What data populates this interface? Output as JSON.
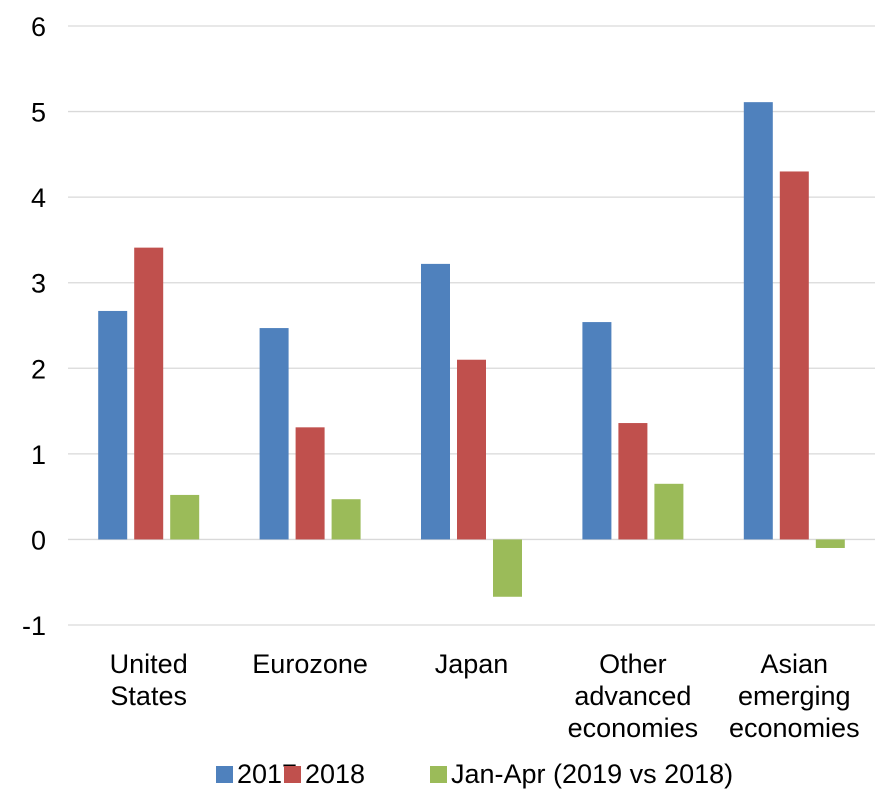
{
  "chart_data": {
    "type": "bar",
    "title": "",
    "xlabel": "",
    "ylabel": "",
    "ylim": [
      -1,
      6
    ],
    "yticks": [
      -1,
      0,
      1,
      2,
      3,
      4,
      5,
      6
    ],
    "grid": true,
    "legend_position": "bottom",
    "categories": [
      [
        "United",
        "States"
      ],
      [
        "Eurozone"
      ],
      [
        "Japan"
      ],
      [
        "Other",
        "advanced",
        "economies"
      ],
      [
        "Asian",
        "emerging",
        "economies"
      ]
    ],
    "series": [
      {
        "name": "2017",
        "color": "#4F81BD",
        "values": [
          2.67,
          2.47,
          3.22,
          2.54,
          5.11
        ]
      },
      {
        "name": "2018",
        "color": "#C0504D",
        "values": [
          3.41,
          1.31,
          2.1,
          1.36,
          4.3
        ]
      },
      {
        "name": "Jan-Apr (2019 vs 2018)",
        "color": "#9BBB59",
        "values": [
          0.52,
          0.47,
          -0.67,
          0.65,
          -0.1
        ]
      }
    ]
  }
}
